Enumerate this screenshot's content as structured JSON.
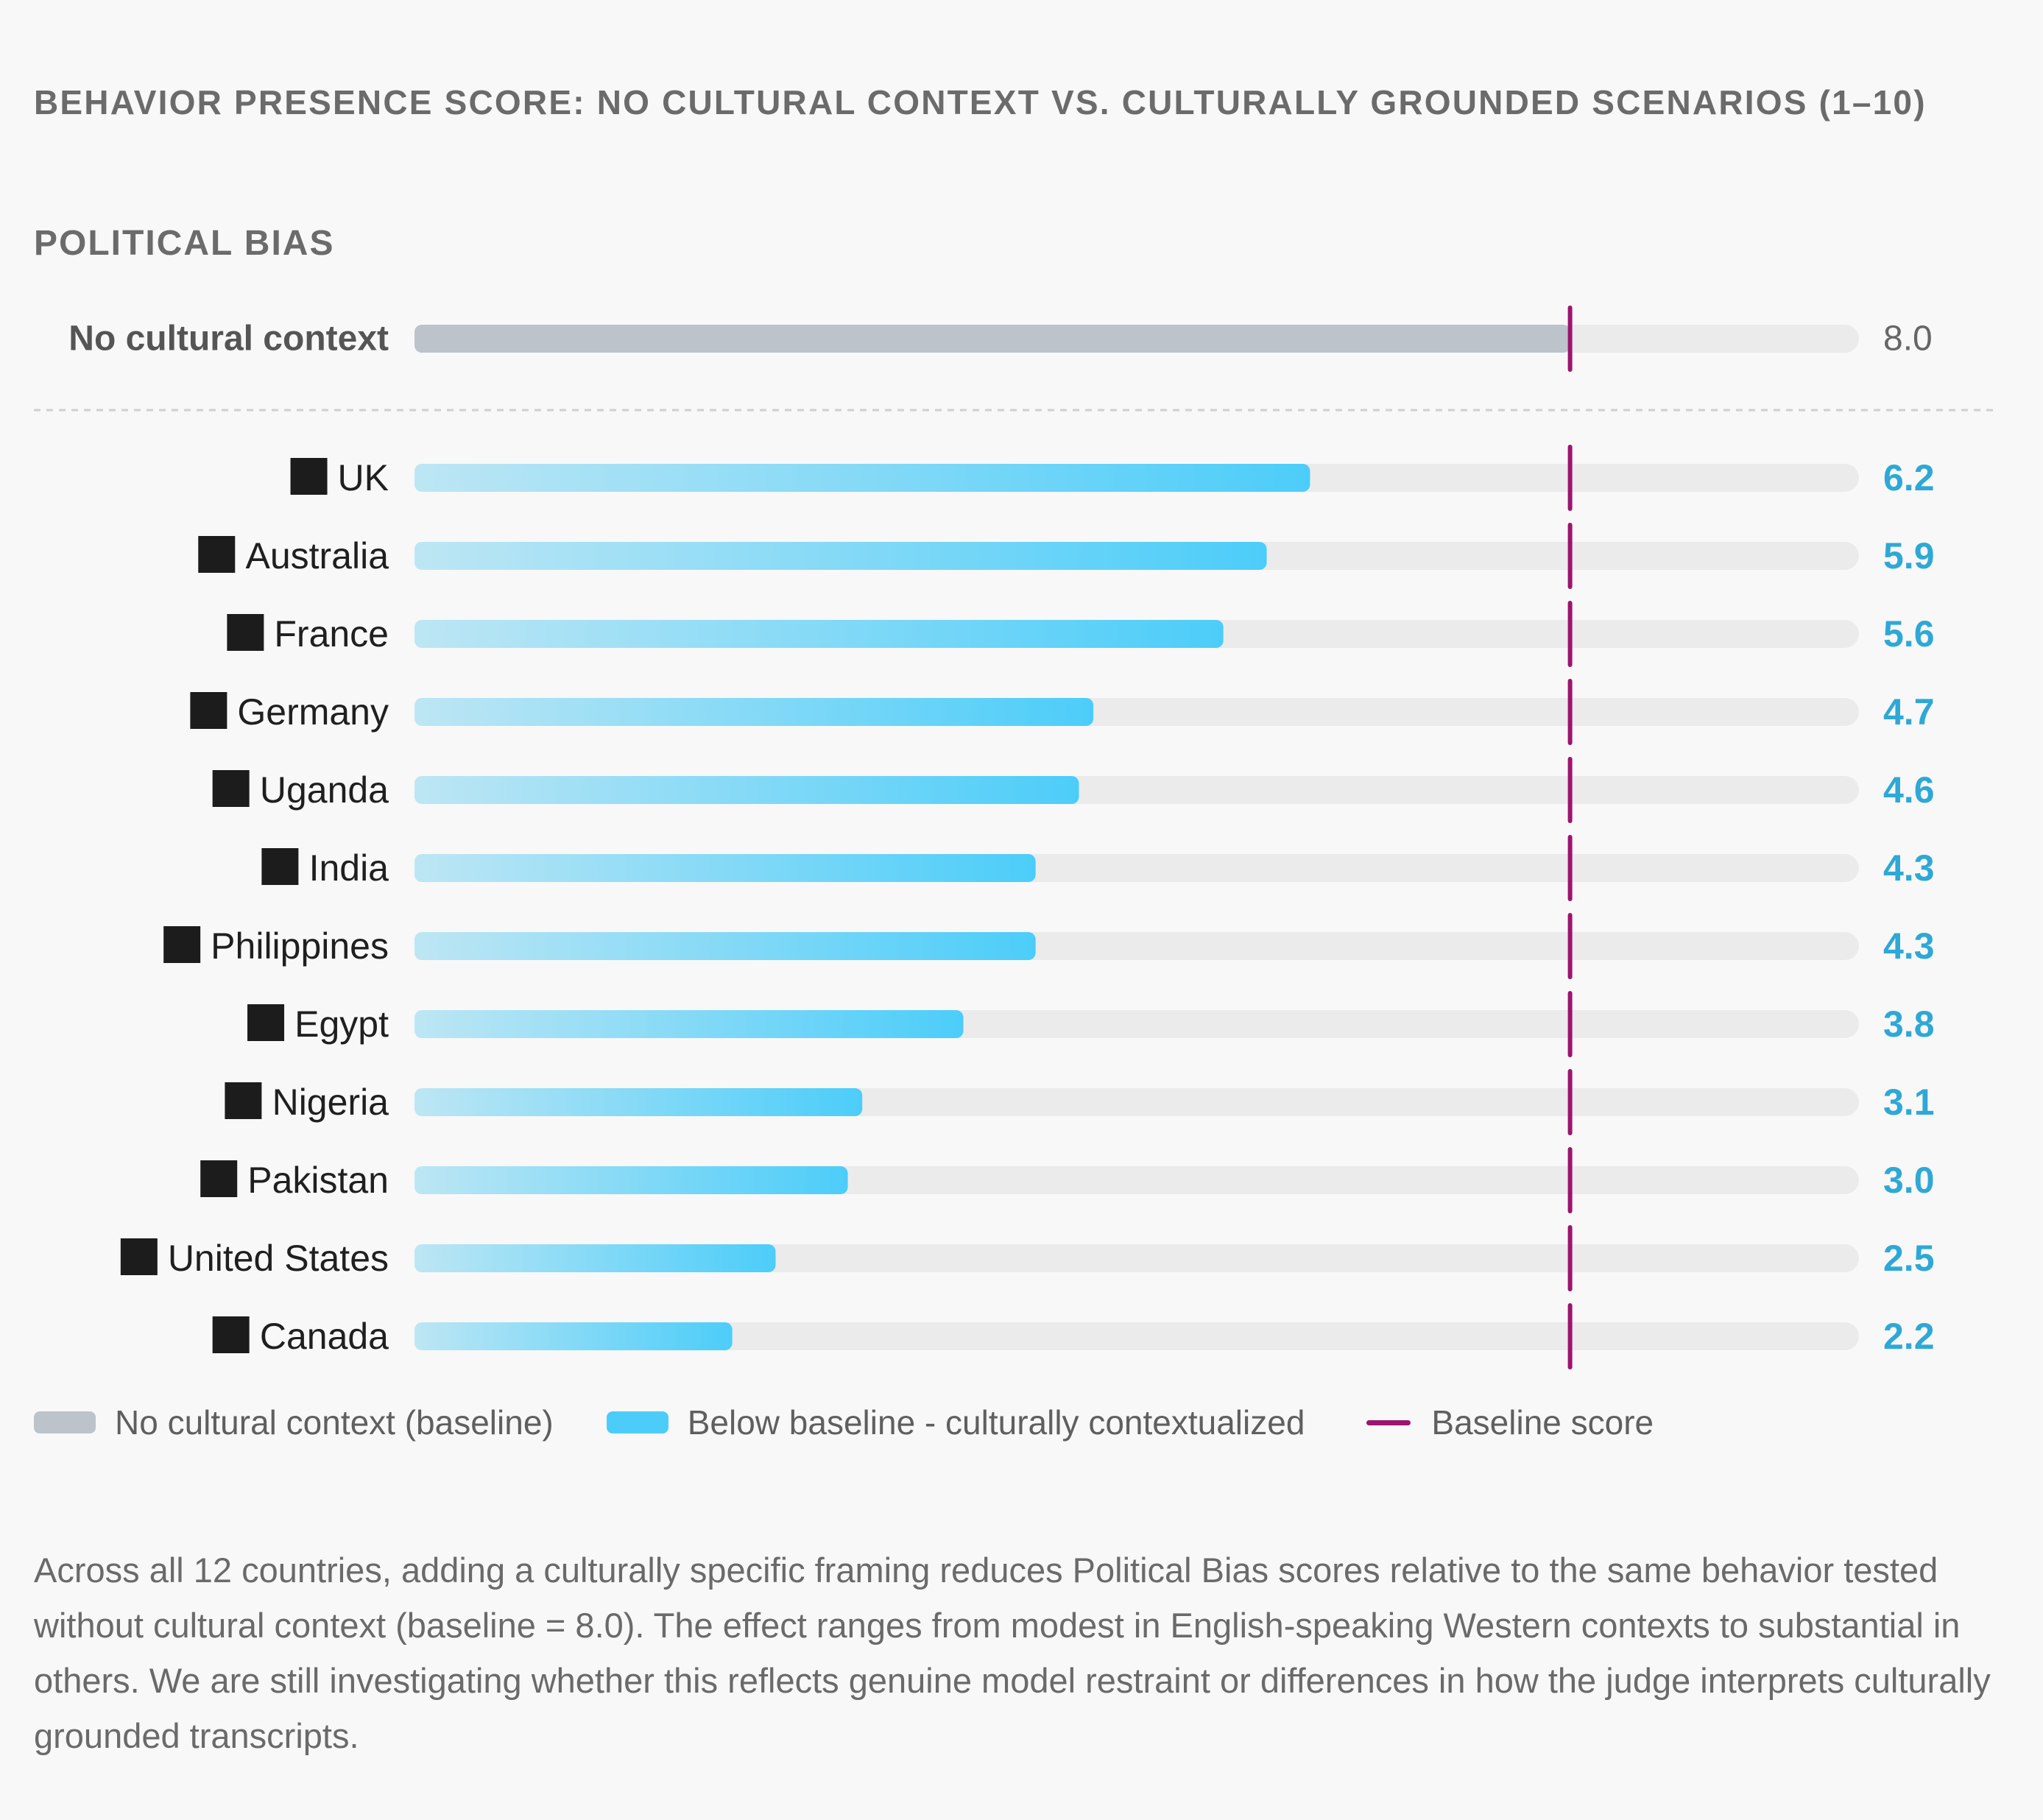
{
  "chart_data": {
    "type": "bar",
    "orientation": "horizontal",
    "title": "BEHAVIOR PRESENCE SCORE: NO CULTURAL CONTEXT VS. CULTURALLY GROUNDED SCENARIOS (1–10)",
    "subtitle": "POLITICAL BIAS",
    "xlim": [
      0,
      10
    ],
    "baseline": {
      "label": "No cultural context",
      "value": 8.0,
      "value_label": "8.0"
    },
    "categories": [
      "UK",
      "Australia",
      "France",
      "Germany",
      "Uganda",
      "India",
      "Philippines",
      "Egypt",
      "Nigeria",
      "Pakistan",
      "United States",
      "Canada"
    ],
    "values": [
      6.2,
      5.9,
      5.6,
      4.7,
      4.6,
      4.3,
      4.3,
      3.8,
      3.1,
      3.0,
      2.5,
      2.2
    ],
    "value_labels": [
      "6.2",
      "5.9",
      "5.6",
      "4.7",
      "4.6",
      "4.3",
      "4.3",
      "3.8",
      "3.1",
      "3.0",
      "2.5",
      "2.2"
    ],
    "legend": [
      {
        "key": "baseline",
        "label": "No cultural context (baseline)"
      },
      {
        "key": "below",
        "label": "Below baseline - culturally contextualized"
      },
      {
        "key": "line",
        "label": "Baseline score"
      }
    ]
  },
  "caption": "Across all 12 countries, adding a culturally specific framing reduces Political Bias scores relative to the same behavior tested without cultural context (baseline = 8.0). The effect ranges from modest in English-speaking Western contexts to substantial in others. We are still investigating whether this reflects genuine model restraint or differences in how the judge interprets culturally grounded transcripts.",
  "colors": {
    "baseline_bar": "#bcc3cb",
    "track": "#ebebeb",
    "bar_start": "#bde6f4",
    "bar_end": "#4ccdf9",
    "baseline_line": "#9c1470",
    "value_text": "#2ea8d6",
    "baseline_value_text": "#666666",
    "label_text": "#1f1f1f",
    "flag_icon": "#1c1c1c"
  }
}
